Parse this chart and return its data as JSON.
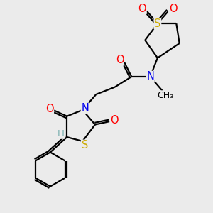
{
  "bg_color": "#ebebeb",
  "atom_colors": {
    "C": "#000000",
    "N": "#0000ee",
    "O": "#ff0000",
    "S": "#ccaa00",
    "H": "#7ab0b0"
  },
  "bond_color": "#000000",
  "line_width": 1.6,
  "font_size": 10.5
}
